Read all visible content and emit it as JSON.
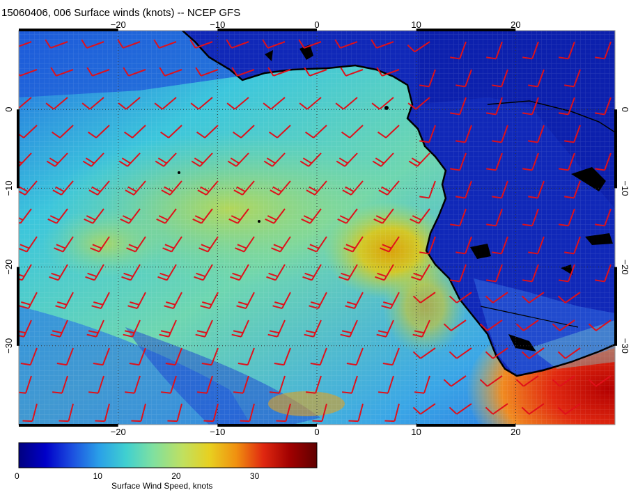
{
  "title": "15060406, 006 Surface winds (knots) -- NCEP GFS",
  "map": {
    "lon_range": [
      -30,
      30
    ],
    "lat_range": [
      -40,
      10
    ],
    "lon_ticks": [
      {
        "value": -20,
        "label": "−20"
      },
      {
        "value": -10,
        "label": "−10"
      },
      {
        "value": 0,
        "label": "0"
      },
      {
        "value": 10,
        "label": "10"
      },
      {
        "value": 20,
        "label": "20"
      }
    ],
    "lat_ticks": [
      {
        "value": 0,
        "label": "0"
      },
      {
        "value": -10,
        "label": "−10"
      },
      {
        "value": -20,
        "label": "−20"
      },
      {
        "value": -30,
        "label": "−30"
      }
    ],
    "gridlines": true,
    "barb_color": "#e0101a",
    "coast_color": "#000000"
  },
  "colorbar": {
    "title": "Surface Wind Speed, knots",
    "range": [
      0,
      38
    ],
    "ticks": [
      {
        "value": 0,
        "label": "0"
      },
      {
        "value": 10,
        "label": "10"
      },
      {
        "value": 20,
        "label": "20"
      },
      {
        "value": 30,
        "label": "30"
      }
    ],
    "colors": [
      "#000080",
      "#0000c8",
      "#1c50e0",
      "#2aa0e8",
      "#40d0d0",
      "#7fe0a0",
      "#c0e060",
      "#e8d020",
      "#f09010",
      "#e02810",
      "#a00000",
      "#600000"
    ]
  }
}
